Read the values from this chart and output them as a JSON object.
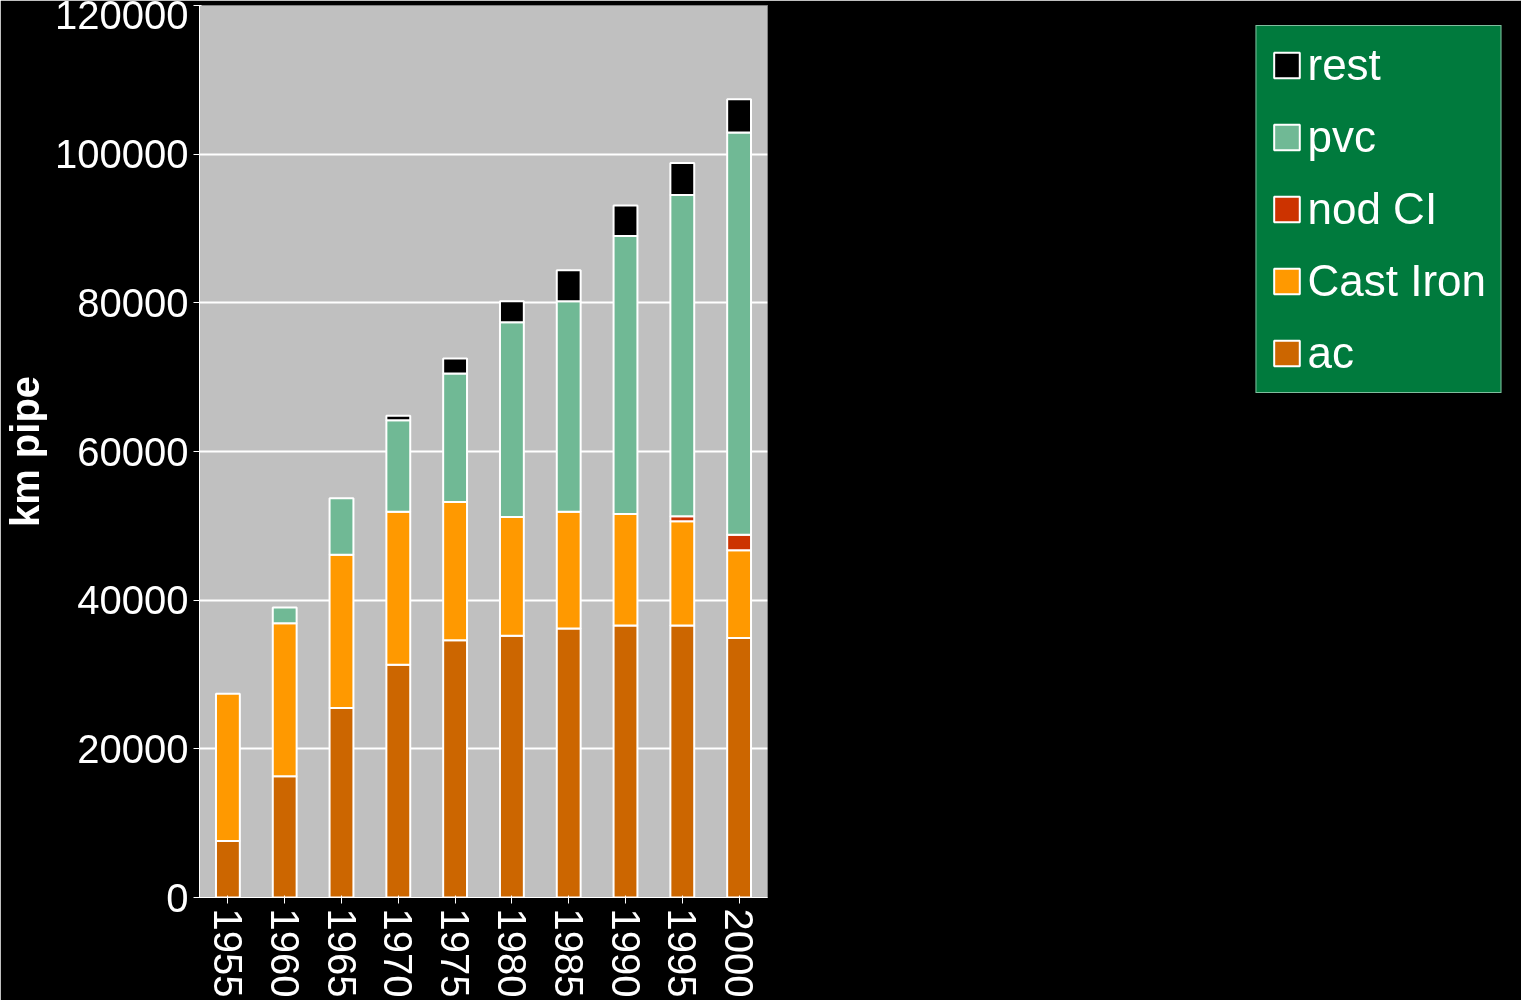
{
  "chart_data": {
    "type": "bar",
    "stacked": true,
    "ylabel": "km pipe",
    "categories": [
      "1955",
      "1960",
      "1965",
      "1970",
      "1975",
      "1980",
      "1985",
      "1990",
      "1995",
      "2000"
    ],
    "series": [
      {
        "name": "ac",
        "color": "#cc6600",
        "values": [
          7600,
          16300,
          25500,
          31300,
          34600,
          35200,
          36200,
          36600,
          36600,
          34900
        ]
      },
      {
        "name": "Cast Iron",
        "color": "#ff9900",
        "values": [
          19800,
          20600,
          20600,
          20600,
          18600,
          16000,
          15700,
          15000,
          14000,
          11800
        ]
      },
      {
        "name": "nod CI",
        "color": "#cc3300",
        "values": [
          null,
          null,
          null,
          null,
          null,
          null,
          null,
          null,
          700,
          2100
        ]
      },
      {
        "name": "pvc",
        "color": "#70b995",
        "values": [
          null,
          2100,
          7600,
          12300,
          17300,
          26200,
          28300,
          37400,
          43200,
          54100
        ]
      },
      {
        "name": "rest",
        "color": "#000000",
        "values": [
          null,
          null,
          null,
          600,
          2000,
          2800,
          4200,
          4100,
          4300,
          4500
        ]
      }
    ],
    "ylim": [
      0,
      120000
    ],
    "yticks": [
      0,
      20000,
      40000,
      60000,
      80000,
      100000,
      120000
    ],
    "grid": "y",
    "legend": "right"
  }
}
